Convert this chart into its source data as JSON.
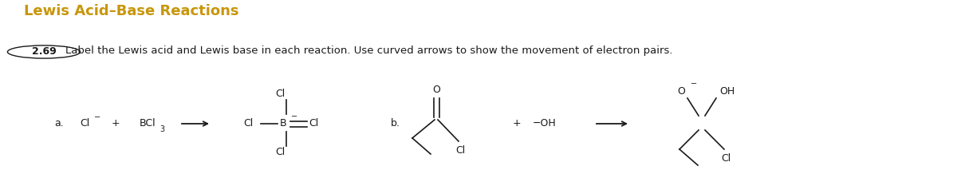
{
  "title": "Lewis Acid–Base Reactions",
  "title_color": "#c8960c",
  "title_fontsize": 13,
  "background_color": "#ffffff",
  "problem_number": "2.69",
  "problem_text": "Label the Lewis acid and Lewis base in each reaction. Use curved arrows to show the movement of electron pairs.",
  "text_color": "#1a1a1a",
  "figsize": [
    12.0,
    2.13
  ],
  "dpi": 100
}
